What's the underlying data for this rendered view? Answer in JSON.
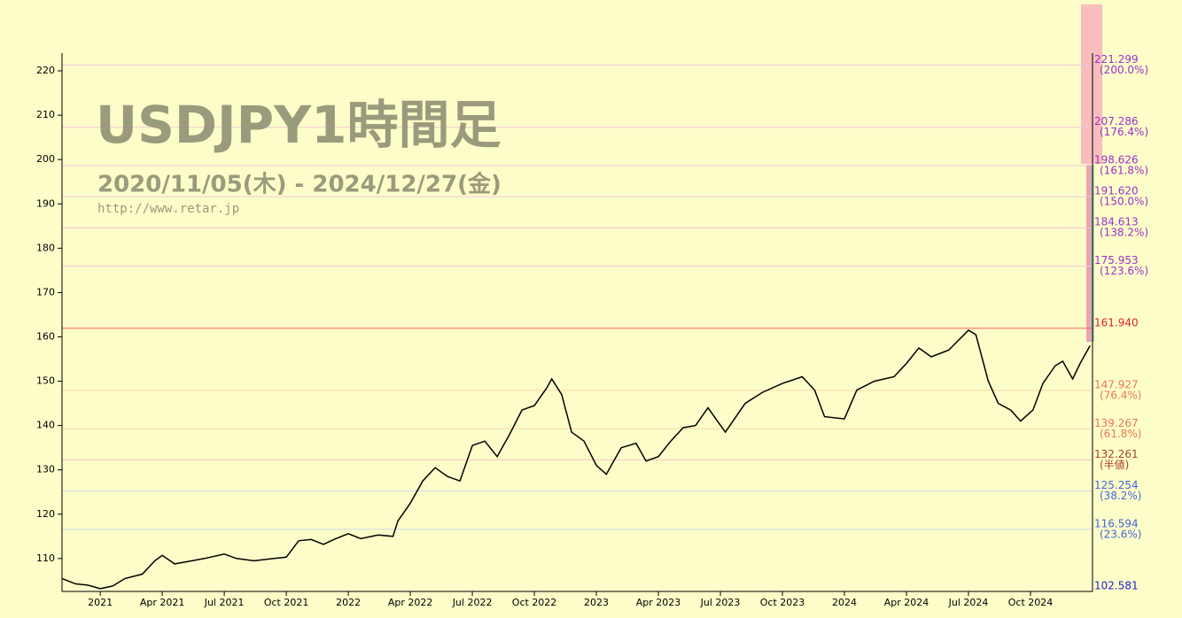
{
  "chart_data": {
    "type": "line",
    "title": "USDJPY1時間足",
    "subtitle": "2020/11/05(木) - 2024/12/27(金)",
    "source": "http://www.retar.jp",
    "x": [
      2020.846,
      2020.9,
      2020.95,
      2021.0,
      2021.05,
      2021.1,
      2021.17,
      2021.22,
      2021.25,
      2021.3,
      2021.35,
      2021.42,
      2021.5,
      2021.55,
      2021.62,
      2021.7,
      2021.75,
      2021.8,
      2021.85,
      2021.9,
      2021.95,
      2022.0,
      2022.05,
      2022.12,
      2022.18,
      2022.2,
      2022.25,
      2022.3,
      2022.35,
      2022.4,
      2022.45,
      2022.5,
      2022.55,
      2022.6,
      2022.65,
      2022.7,
      2022.75,
      2022.8,
      2022.82,
      2022.86,
      2022.9,
      2022.95,
      2023.0,
      2023.04,
      2023.1,
      2023.16,
      2023.2,
      2023.25,
      2023.3,
      2023.35,
      2023.4,
      2023.45,
      2023.52,
      2023.6,
      2023.67,
      2023.75,
      2023.83,
      2023.88,
      2023.92,
      2024.0,
      2024.05,
      2024.12,
      2024.2,
      2024.25,
      2024.3,
      2024.35,
      2024.42,
      2024.5,
      2024.53,
      2024.58,
      2024.62,
      2024.67,
      2024.71,
      2024.76,
      2024.8,
      2024.85,
      2024.88,
      2024.92,
      2024.95,
      2024.99
    ],
    "series": [
      {
        "color": "#000000",
        "values": [
          105.5,
          104.3,
          104.0,
          103.2,
          103.8,
          105.5,
          106.5,
          109.5,
          110.7,
          108.8,
          109.3,
          110.0,
          111.0,
          110.0,
          109.5,
          110.0,
          110.3,
          114.0,
          114.3,
          113.2,
          114.5,
          115.6,
          114.5,
          115.3,
          115.0,
          118.5,
          122.5,
          127.5,
          130.5,
          128.5,
          127.5,
          135.5,
          136.5,
          133.0,
          138.0,
          143.5,
          144.5,
          148.5,
          150.5,
          147.0,
          138.5,
          136.5,
          131.0,
          129.0,
          135.0,
          136.0,
          132.0,
          133.0,
          136.5,
          139.5,
          140.0,
          144.0,
          138.5,
          145.0,
          147.5,
          149.5,
          151.0,
          148.0,
          142.0,
          141.5,
          148.0,
          150.0,
          151.0,
          154.0,
          157.5,
          155.5,
          157.0,
          161.5,
          160.5,
          150.0,
          145.0,
          143.5,
          141.0,
          143.5,
          149.5,
          153.5,
          154.5,
          150.5,
          154.0,
          158.0
        ]
      }
    ],
    "xlim": [
      2020.846,
      2025.0
    ],
    "ylim": [
      102.581,
      224
    ],
    "xticks": [
      {
        "value": 2021.0,
        "label": "2021"
      },
      {
        "value": 2021.25,
        "label": "Apr 2021"
      },
      {
        "value": 2021.5,
        "label": "Jul 2021"
      },
      {
        "value": 2021.75,
        "label": "Oct 2021"
      },
      {
        "value": 2022.0,
        "label": "2022"
      },
      {
        "value": 2022.25,
        "label": "Apr 2022"
      },
      {
        "value": 2022.5,
        "label": "Jul 2022"
      },
      {
        "value": 2022.75,
        "label": "Oct 2022"
      },
      {
        "value": 2023.0,
        "label": "2023"
      },
      {
        "value": 2023.25,
        "label": "Apr 2023"
      },
      {
        "value": 2023.5,
        "label": "Jul 2023"
      },
      {
        "value": 2023.75,
        "label": "Oct 2023"
      },
      {
        "value": 2024.0,
        "label": "2024"
      },
      {
        "value": 2024.25,
        "label": "Apr 2024"
      },
      {
        "value": 2024.5,
        "label": "Jul 2024"
      },
      {
        "value": 2024.75,
        "label": "Oct 2024"
      }
    ],
    "yticks": [
      110,
      120,
      130,
      140,
      150,
      160,
      170,
      180,
      190,
      200,
      210,
      220
    ],
    "levels": [
      {
        "value": 221.299,
        "label": "221.299",
        "note": "(200.0%)",
        "color": "#9933cc",
        "line": "#f0c8d8"
      },
      {
        "value": 207.286,
        "label": "207.286",
        "note": "(176.4%)",
        "color": "#9933cc",
        "line": "#f0c8d8"
      },
      {
        "value": 198.626,
        "label": "198.626",
        "note": "(161.8%)",
        "color": "#9933cc",
        "line": "#f0c8d8"
      },
      {
        "value": 191.62,
        "label": "191.620",
        "note": "(150.0%)",
        "color": "#9933cc",
        "line": "#f0c8d8"
      },
      {
        "value": 184.613,
        "label": "184.613",
        "note": "(138.2%)",
        "color": "#9933cc",
        "line": "#f0c8d8"
      },
      {
        "value": 175.953,
        "label": "175.953",
        "note": "(123.6%)",
        "color": "#9933cc",
        "line": "#f0c8d8"
      },
      {
        "value": 161.94,
        "label": "161.940",
        "color": "#dd2222",
        "line": "#ee6666"
      },
      {
        "value": 147.927,
        "label": "147.927",
        "note": "(76.4%)",
        "color": "#ee7755",
        "line": "#f5d8a8"
      },
      {
        "value": 139.267,
        "label": "139.267",
        "note": "(61.8%)",
        "color": "#ee7755",
        "line": "#f5d8a8"
      },
      {
        "value": 132.261,
        "label": "132.261",
        "note": "(半値)",
        "color": "#aa4422",
        "line": "#f0c8c0"
      },
      {
        "value": 125.254,
        "label": "125.254",
        "note": "(38.2%)",
        "color": "#4466dd",
        "line": "#d0d8e8"
      },
      {
        "value": 116.594,
        "label": "116.594",
        "note": "(23.6%)",
        "color": "#4466dd",
        "line": "#d0d8e8"
      },
      {
        "value": 102.581,
        "label": "102.581",
        "color": "#2222cc",
        "line": "#2222cc"
      }
    ]
  }
}
